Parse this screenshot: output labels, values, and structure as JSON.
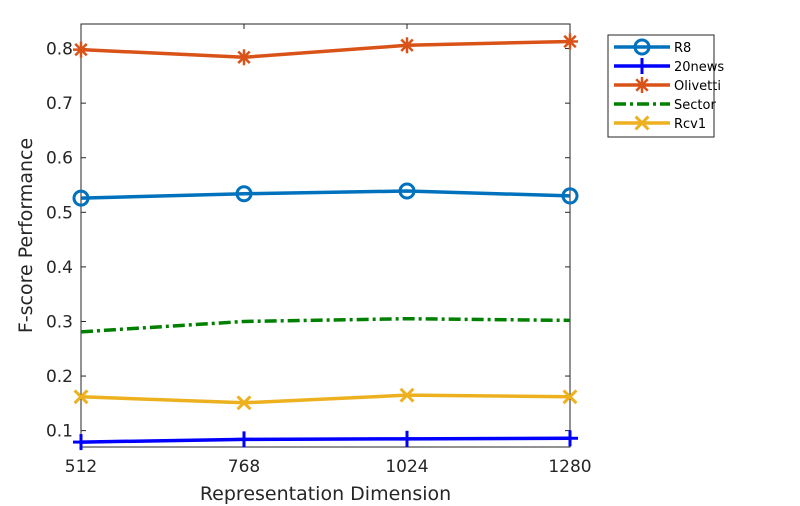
{
  "chart_data": {
    "type": "line",
    "title": "",
    "xlabel": "Representation Dimension",
    "ylabel": "F-score Performance",
    "x": [
      512,
      768,
      1024,
      1280
    ],
    "xticks": [
      "512",
      "768",
      "1024",
      "1280"
    ],
    "xlim": [
      512,
      1280
    ],
    "ylim": [
      0.07,
      0.845
    ],
    "yticks": [
      "0.1",
      "0.2",
      "0.3",
      "0.4",
      "0.5",
      "0.6",
      "0.7",
      "0.8"
    ],
    "grid": false,
    "legend_position": "outside-top-right",
    "series": [
      {
        "name": "R8",
        "color": "#0072BD",
        "marker": "circle",
        "dash": "solid",
        "values": [
          0.526,
          0.534,
          0.539,
          0.53
        ]
      },
      {
        "name": "20news",
        "color": "#0000FF",
        "marker": "plus",
        "dash": "solid",
        "values": [
          0.079,
          0.084,
          0.085,
          0.086
        ]
      },
      {
        "name": "Olivetti",
        "color": "#D95319",
        "marker": "asterisk",
        "dash": "solid",
        "values": [
          0.798,
          0.784,
          0.806,
          0.813
        ]
      },
      {
        "name": "Sector",
        "color": "#008000",
        "marker": "none",
        "dash": "dashdot",
        "values": [
          0.281,
          0.3,
          0.305,
          0.302
        ]
      },
      {
        "name": "Rcv1",
        "color": "#EDB120",
        "marker": "x",
        "dash": "solid",
        "values": [
          0.162,
          0.151,
          0.165,
          0.162
        ]
      }
    ]
  }
}
